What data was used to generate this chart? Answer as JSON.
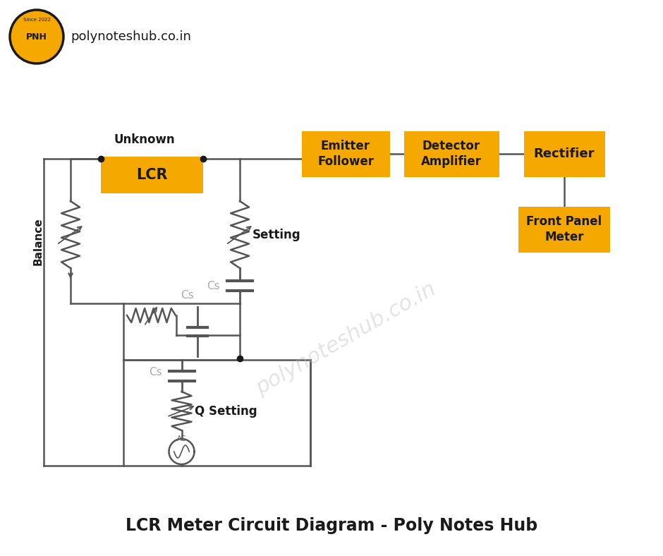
{
  "bg_color": "#ffffff",
  "title": "LCR Meter Circuit Diagram - Poly Notes Hub",
  "title_fontsize": 17,
  "box_color": "#F5A800",
  "box_text_color": "#1a1a1a",
  "line_color": "#555555",
  "line_width": 1.8,
  "watermark": "polynoteshub.co.in",
  "logo_color": "#F5A800",
  "logo_website": "polynoteshub.co.in"
}
